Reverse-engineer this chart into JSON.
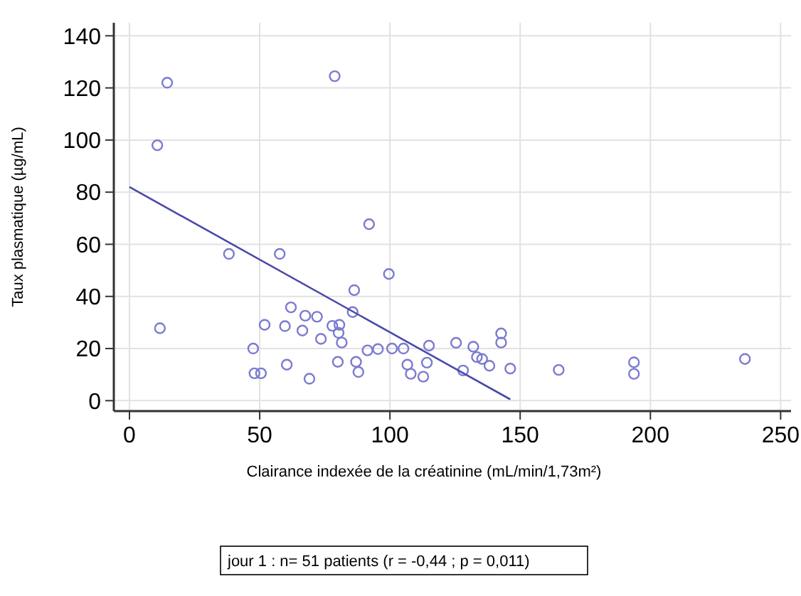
{
  "chart_data": {
    "type": "scatter",
    "xlabel": "Clairance indexée de la créatinine (mL/min/1,73m²)",
    "ylabel": "Taux plasmatique (µg/mL)",
    "xlim": [
      -6,
      254
    ],
    "ylim": [
      -4,
      145
    ],
    "xticks": [
      0,
      50,
      100,
      150,
      200,
      250
    ],
    "yticks": [
      0,
      20,
      40,
      60,
      80,
      100,
      120,
      140
    ],
    "grid": true,
    "annotations": [
      "jour 1 : n= 51 patients (r = -0,44 ; p = 0,011)"
    ],
    "series": [
      {
        "color": "#7b7bd0",
        "marker": "circle",
        "x": [
          14.5,
          10.7,
          11.7,
          78.8,
          92,
          38.2,
          57.7,
          99.6,
          86.3,
          85.7,
          62,
          67.5,
          72,
          51.9,
          59.7,
          66.4,
          77.9,
          80.6,
          80.3,
          73.5,
          81.5,
          47.5,
          91.4,
          95.4,
          100.8,
          105.2,
          115,
          60.4,
          80,
          87,
          106.7,
          114.2,
          48,
          50.5,
          87.9,
          108,
          112.8,
          69.1,
          125.4,
          128.1,
          132,
          133.4,
          135.4,
          138.2,
          142.7,
          142.7,
          146.2,
          164.8,
          193.7,
          193.7,
          236.3
        ],
        "values": [
          122,
          98,
          27.8,
          124.5,
          67.7,
          56.3,
          56.3,
          48.6,
          42.4,
          34,
          35.8,
          32.6,
          32.2,
          29.1,
          28.6,
          26.9,
          28.7,
          29.1,
          26,
          23.7,
          22.3,
          20,
          19.3,
          19.8,
          20,
          20,
          21.1,
          13.8,
          14.9,
          14.9,
          13.8,
          14.6,
          10.5,
          10.5,
          11,
          10.3,
          9.2,
          8.4,
          22.2,
          11.6,
          20.7,
          16.7,
          16,
          13.4,
          25.8,
          22.3,
          12.3,
          11.8,
          14.7,
          10.3,
          16
        ]
      },
      {
        "type": "line",
        "color": "#4a4aaa",
        "x": [
          0,
          146.2
        ],
        "values": [
          82,
          0.5
        ],
        "marker": "none"
      }
    ]
  }
}
